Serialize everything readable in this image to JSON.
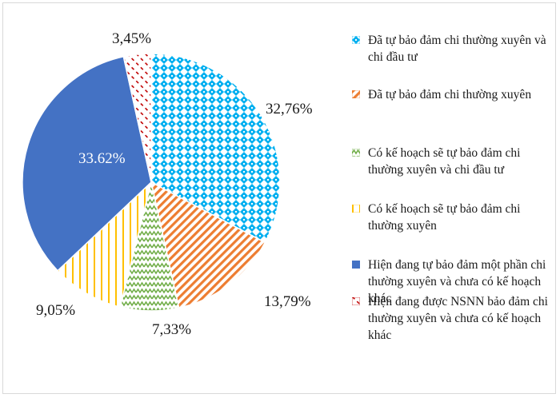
{
  "chart_data": {
    "type": "pie",
    "title": "",
    "start_angle_deg": 0,
    "direction": "clockwise",
    "legend_position": "right",
    "slices": [
      {
        "label": "Đã tự bảo đảm chi thường xuyên và chi đầu tư",
        "value": 32.76,
        "value_label": "32,76%",
        "color": "#00b0f0",
        "pattern": "diamond-check"
      },
      {
        "label": "Đã tự bảo đảm chi thường xuyên",
        "value": 13.79,
        "value_label": "13,79%",
        "color": "#ed7d31",
        "pattern": "diagonal-stripes"
      },
      {
        "label": "Có kế hoạch sẽ tự bảo đảm chi thường xuyên và chi đầu tư",
        "value": 7.33,
        "value_label": "7,33%",
        "color": "#70ad47",
        "pattern": "zigzag"
      },
      {
        "label": "Có kế hoạch sẽ tự bảo đảm chi thường xuyên",
        "value": 9.05,
        "value_label": "9,05%",
        "color": "#ffc000",
        "pattern": "vertical-lines"
      },
      {
        "label": "Hiện đang tự bảo đảm một phần chi thường xuyên và chưa có kế hoạch khác",
        "value": 33.62,
        "value_label": "33.62%",
        "color": "#4472c4",
        "pattern": "solid"
      },
      {
        "label": "Hiện đang được NSNN bảo đảm chi thường xuyên và chưa có kế hoạch khác",
        "value": 3.45,
        "value_label": "3,45%",
        "color": "#c00000",
        "pattern": "dashed-diagonal"
      }
    ]
  }
}
